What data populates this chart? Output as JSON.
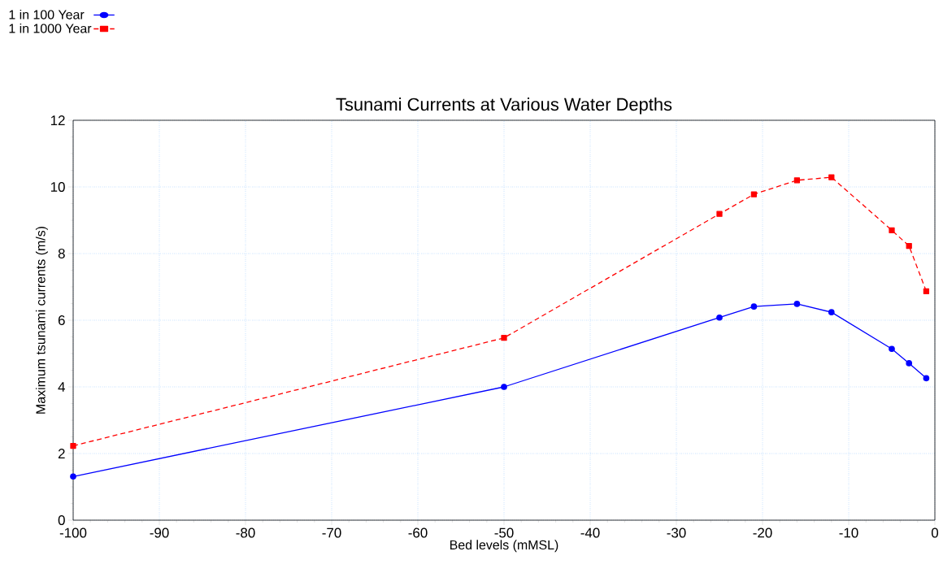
{
  "chart_data": {
    "type": "line",
    "title": "Tsunami Currents at Various Water Depths",
    "xlabel": "Bed levels (mMSL)",
    "ylabel": "Maximum tsunami currents (m/s)",
    "xlim": [
      -100,
      0
    ],
    "xticks": [
      -100,
      -90,
      -80,
      -70,
      -60,
      -50,
      -40,
      -30,
      -20,
      -10,
      0
    ],
    "ylim": [
      0,
      12
    ],
    "yticks": [
      0,
      2,
      4,
      6,
      8,
      10,
      12
    ],
    "grid": true,
    "legend": "top left",
    "series": [
      {
        "name": "1 in 100 Year",
        "color": "#0000ff",
        "marker": "circle",
        "line_style": "solid",
        "x": [
          -100,
          -50,
          -25,
          -21,
          -16,
          -12,
          -5,
          -3,
          -1
        ],
        "values": [
          1.31,
          4.0,
          6.08,
          6.41,
          6.49,
          6.24,
          5.14,
          4.71,
          4.26
        ]
      },
      {
        "name": "1 in 1000 Year",
        "color": "#ff0000",
        "marker": "square",
        "line_style": "dashed",
        "x": [
          -100,
          -50,
          -25,
          -21,
          -16,
          -12,
          -5,
          -3,
          -1
        ],
        "values": [
          2.23,
          5.47,
          9.19,
          9.78,
          10.2,
          10.29,
          8.7,
          8.23,
          6.87
        ]
      }
    ]
  }
}
